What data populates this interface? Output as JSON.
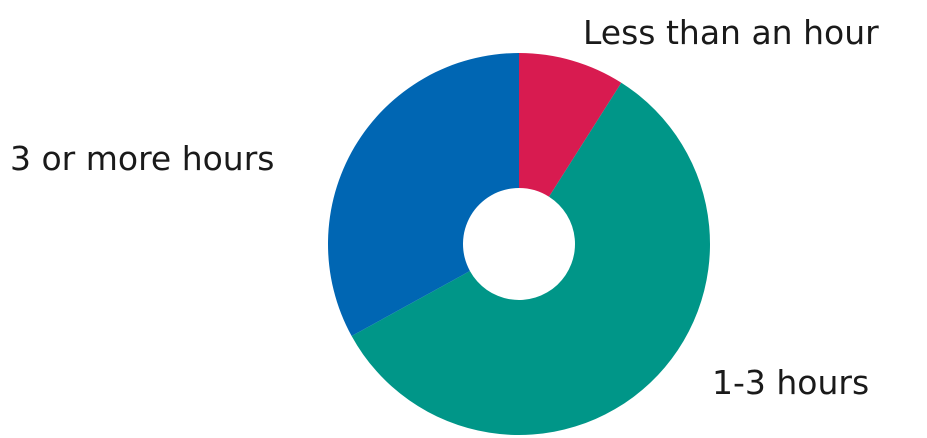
{
  "chart_data": {
    "type": "pie",
    "donut": true,
    "title": "",
    "legend": "none",
    "slices": [
      {
        "label": "Less than an hour",
        "value": 9,
        "color": "#D81B50"
      },
      {
        "label": "1-3 hours",
        "value": 58,
        "color": "#009688"
      },
      {
        "label": "3 or more hours",
        "value": 33,
        "color": "#0066B3"
      }
    ]
  }
}
